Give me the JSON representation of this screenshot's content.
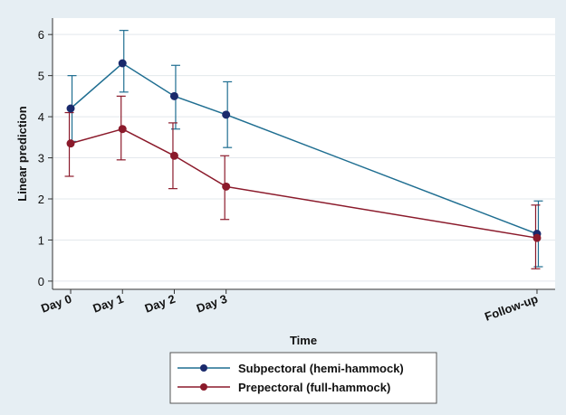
{
  "chart_data": {
    "type": "line",
    "xlabel": "Time",
    "ylabel": "Linear prediction",
    "x_categories": [
      "Day 0",
      "Day 1",
      "Day 2",
      "Day 3",
      "Follow-up"
    ],
    "x_positions": [
      0,
      1,
      2,
      3,
      9
    ],
    "y_ticks": [
      0,
      1,
      2,
      3,
      4,
      5,
      6
    ],
    "ylim": [
      -0.2,
      6.4
    ],
    "grid": "horizontal",
    "legend_position": "bottom",
    "series": [
      {
        "name": "Subpectoral (hemi-hammock)",
        "color": "#1f6e91",
        "marker_color": "#1a2a6c",
        "values": [
          4.2,
          5.3,
          4.5,
          4.05,
          1.15
        ],
        "ci_lower": [
          3.4,
          4.6,
          3.7,
          3.25,
          0.35
        ],
        "ci_upper": [
          5.0,
          6.1,
          5.25,
          4.85,
          1.95
        ]
      },
      {
        "name": "Prepectoral (full-hammock)",
        "color": "#8b1a2b",
        "marker_color": "#8b1a2b",
        "values": [
          3.35,
          3.7,
          3.05,
          2.3,
          1.05
        ],
        "ci_lower": [
          2.55,
          2.95,
          2.25,
          1.5,
          0.3
        ],
        "ci_upper": [
          4.1,
          4.5,
          3.85,
          3.05,
          1.85
        ]
      }
    ]
  }
}
